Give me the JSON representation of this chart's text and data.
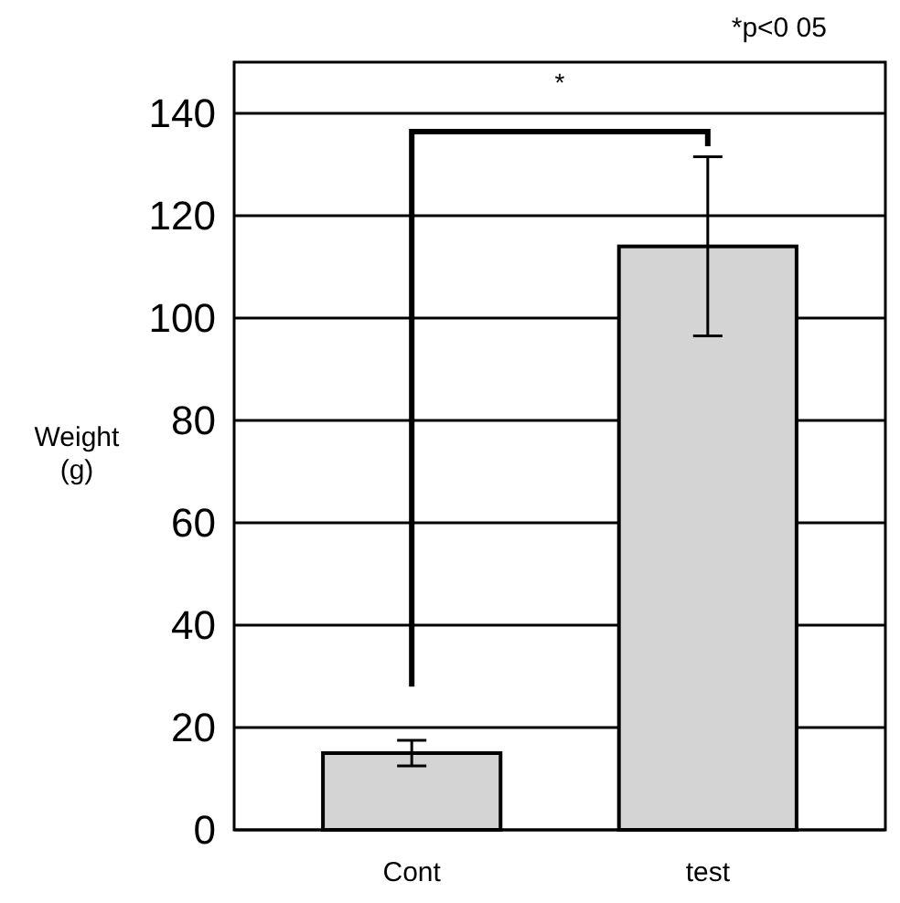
{
  "chart_data": {
    "type": "bar",
    "ylabel": "Weight (g)",
    "categories": [
      "Cont",
      "test"
    ],
    "values": [
      15,
      114
    ],
    "errors": [
      2.5,
      17.5
    ],
    "color": "#d4d4d4",
    "ylim": [
      0,
      150
    ],
    "yticks": [
      0,
      20,
      40,
      60,
      80,
      100,
      120,
      140
    ],
    "grid": "y",
    "annotations": [
      "*",
      "*p<0 05"
    ]
  }
}
